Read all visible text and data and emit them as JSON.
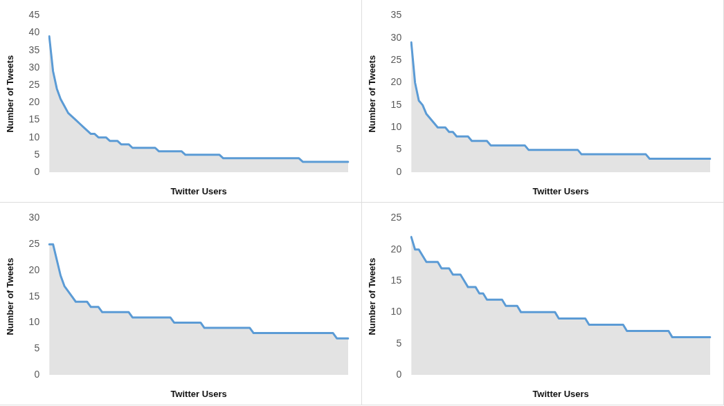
{
  "chart_data": [
    {
      "type": "area",
      "xlabel": "Twitter Users",
      "ylabel": "Number of Tweets",
      "ylim": [
        0,
        45
      ],
      "yticks": [
        0,
        5,
        10,
        15,
        20,
        25,
        30,
        35,
        40,
        45
      ],
      "grid": false,
      "color": "#5b9bd5",
      "categories": [
        null,
        null,
        null,
        null,
        null,
        null,
        null,
        null,
        null,
        null,
        null,
        null,
        null,
        null,
        null,
        null,
        null,
        null,
        null,
        null,
        null,
        null,
        null,
        null,
        null,
        null,
        null,
        null,
        null,
        null,
        null,
        null,
        null,
        null,
        null,
        null,
        null,
        null,
        null,
        null,
        null,
        null,
        null,
        null,
        null,
        null,
        null,
        null,
        null,
        null,
        null,
        null,
        null,
        null,
        null,
        null,
        null,
        null,
        null,
        null,
        null,
        null,
        null,
        null,
        null,
        null,
        null,
        null,
        null,
        null,
        null,
        null,
        null,
        null,
        null,
        null,
        null,
        null,
        null,
        null
      ],
      "values": [
        39,
        29,
        24,
        21,
        19,
        17,
        16,
        15,
        14,
        13,
        12,
        11,
        11,
        10,
        10,
        10,
        9,
        9,
        9,
        8,
        8,
        8,
        7,
        7,
        7,
        7,
        7,
        7,
        7,
        6,
        6,
        6,
        6,
        6,
        6,
        6,
        5,
        5,
        5,
        5,
        5,
        5,
        5,
        5,
        5,
        5,
        4,
        4,
        4,
        4,
        4,
        4,
        4,
        4,
        4,
        4,
        4,
        4,
        4,
        4,
        4,
        4,
        4,
        4,
        4,
        4,
        4,
        3,
        3,
        3,
        3,
        3,
        3,
        3,
        3,
        3,
        3,
        3,
        3,
        3
      ]
    },
    {
      "type": "area",
      "xlabel": "Twitter Users",
      "ylabel": "Number of Tweets",
      "ylim": [
        0,
        35
      ],
      "yticks": [
        0,
        5,
        10,
        15,
        20,
        25,
        30,
        35
      ],
      "grid": false,
      "color": "#5b9bd5",
      "categories": [
        null,
        null,
        null,
        null,
        null,
        null,
        null,
        null,
        null,
        null,
        null,
        null,
        null,
        null,
        null,
        null,
        null,
        null,
        null,
        null,
        null,
        null,
        null,
        null,
        null,
        null,
        null,
        null,
        null,
        null,
        null,
        null,
        null,
        null,
        null,
        null,
        null,
        null,
        null,
        null,
        null,
        null,
        null,
        null,
        null,
        null,
        null,
        null,
        null,
        null,
        null,
        null,
        null,
        null,
        null,
        null,
        null,
        null,
        null,
        null,
        null,
        null,
        null,
        null,
        null,
        null,
        null,
        null,
        null,
        null,
        null,
        null,
        null,
        null,
        null,
        null,
        null,
        null,
        null,
        null
      ],
      "values": [
        29,
        20,
        16,
        15,
        13,
        12,
        11,
        10,
        10,
        10,
        9,
        9,
        8,
        8,
        8,
        8,
        7,
        7,
        7,
        7,
        7,
        6,
        6,
        6,
        6,
        6,
        6,
        6,
        6,
        6,
        6,
        5,
        5,
        5,
        5,
        5,
        5,
        5,
        5,
        5,
        5,
        5,
        5,
        5,
        5,
        4,
        4,
        4,
        4,
        4,
        4,
        4,
        4,
        4,
        4,
        4,
        4,
        4,
        4,
        4,
        4,
        4,
        4,
        3,
        3,
        3,
        3,
        3,
        3,
        3,
        3,
        3,
        3,
        3,
        3,
        3,
        3,
        3,
        3,
        3
      ]
    },
    {
      "type": "area",
      "xlabel": "Twitter Users",
      "ylabel": "Number of Tweets",
      "ylim": [
        0,
        30
      ],
      "yticks": [
        0,
        5,
        10,
        15,
        20,
        25,
        30
      ],
      "grid": false,
      "color": "#5b9bd5",
      "categories": [
        null,
        null,
        null,
        null,
        null,
        null,
        null,
        null,
        null,
        null,
        null,
        null,
        null,
        null,
        null,
        null,
        null,
        null,
        null,
        null,
        null,
        null,
        null,
        null,
        null,
        null,
        null,
        null,
        null,
        null,
        null,
        null,
        null,
        null,
        null,
        null,
        null,
        null,
        null,
        null,
        null,
        null,
        null,
        null,
        null,
        null,
        null,
        null,
        null,
        null,
        null,
        null,
        null,
        null,
        null,
        null,
        null,
        null,
        null,
        null,
        null,
        null,
        null,
        null,
        null,
        null,
        null,
        null,
        null,
        null,
        null,
        null,
        null,
        null,
        null,
        null,
        null,
        null,
        null,
        null
      ],
      "values": [
        25,
        25,
        22,
        19,
        17,
        16,
        15,
        14,
        14,
        14,
        14,
        13,
        13,
        13,
        12,
        12,
        12,
        12,
        12,
        12,
        12,
        12,
        11,
        11,
        11,
        11,
        11,
        11,
        11,
        11,
        11,
        11,
        11,
        10,
        10,
        10,
        10,
        10,
        10,
        10,
        10,
        9,
        9,
        9,
        9,
        9,
        9,
        9,
        9,
        9,
        9,
        9,
        9,
        9,
        8,
        8,
        8,
        8,
        8,
        8,
        8,
        8,
        8,
        8,
        8,
        8,
        8,
        8,
        8,
        8,
        8,
        8,
        8,
        8,
        8,
        8,
        7,
        7,
        7,
        7
      ]
    },
    {
      "type": "area",
      "xlabel": "Twitter Users",
      "ylabel": "Number of Tweets",
      "ylim": [
        0,
        25
      ],
      "yticks": [
        0,
        5,
        10,
        15,
        20,
        25
      ],
      "grid": false,
      "color": "#5b9bd5",
      "categories": [
        null,
        null,
        null,
        null,
        null,
        null,
        null,
        null,
        null,
        null,
        null,
        null,
        null,
        null,
        null,
        null,
        null,
        null,
        null,
        null,
        null,
        null,
        null,
        null,
        null,
        null,
        null,
        null,
        null,
        null,
        null,
        null,
        null,
        null,
        null,
        null,
        null,
        null,
        null,
        null,
        null,
        null,
        null,
        null,
        null,
        null,
        null,
        null,
        null,
        null,
        null,
        null,
        null,
        null,
        null,
        null,
        null,
        null,
        null,
        null,
        null,
        null,
        null,
        null,
        null,
        null,
        null,
        null,
        null,
        null,
        null,
        null,
        null,
        null,
        null,
        null,
        null,
        null,
        null,
        null
      ],
      "values": [
        22,
        20,
        20,
        19,
        18,
        18,
        18,
        18,
        17,
        17,
        17,
        16,
        16,
        16,
        15,
        14,
        14,
        14,
        13,
        13,
        12,
        12,
        12,
        12,
        12,
        11,
        11,
        11,
        11,
        10,
        10,
        10,
        10,
        10,
        10,
        10,
        10,
        10,
        10,
        9,
        9,
        9,
        9,
        9,
        9,
        9,
        9,
        8,
        8,
        8,
        8,
        8,
        8,
        8,
        8,
        8,
        8,
        7,
        7,
        7,
        7,
        7,
        7,
        7,
        7,
        7,
        7,
        7,
        7,
        6,
        6,
        6,
        6,
        6,
        6,
        6,
        6,
        6,
        6,
        6
      ]
    }
  ]
}
